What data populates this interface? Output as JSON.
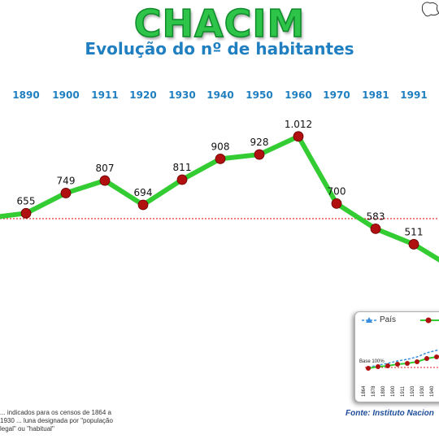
{
  "title": "CHACIM",
  "subtitle": "Evolução do nº de habitantes",
  "footnote": "... indicados para os censos de 1864 a 1930 ... luna designada por \"população legal\" ou \"habitual\"",
  "source": "Fonte: Instituto Nacion",
  "inset": {
    "legend_label": "País",
    "base_label": "Base 100%",
    "years": [
      "1864",
      "1878",
      "1890",
      "1900",
      "1911",
      "1920",
      "1930",
      "1940",
      "1950",
      "1960"
    ]
  },
  "colors": {
    "line": "#33cc33",
    "marker": "#b01010",
    "year_labels": "#1f7fc0",
    "title": "#2ec44a",
    "reference": "#dd2222"
  },
  "chart_data": {
    "type": "line",
    "title": "CHACIM",
    "subtitle": "Evolução do nº de habitantes",
    "x": [
      "1890",
      "1900",
      "1911",
      "1920",
      "1930",
      "1940",
      "1950",
      "1960",
      "1970",
      "1981",
      "1991"
    ],
    "series": [
      {
        "values": [
          655,
          749,
          807,
          694,
          811,
          908,
          928,
          1012,
          700,
          583,
          511
        ],
        "labels": [
          "655",
          "749",
          "807",
          "694",
          "811",
          "908",
          "928",
          "1.012",
          "700",
          "583",
          "511"
        ]
      }
    ],
    "partial_values": {
      "before_first": 640,
      "after_last": 400
    },
    "reference_line": 630,
    "ylim": [
      300,
      1100
    ],
    "grid": false
  }
}
